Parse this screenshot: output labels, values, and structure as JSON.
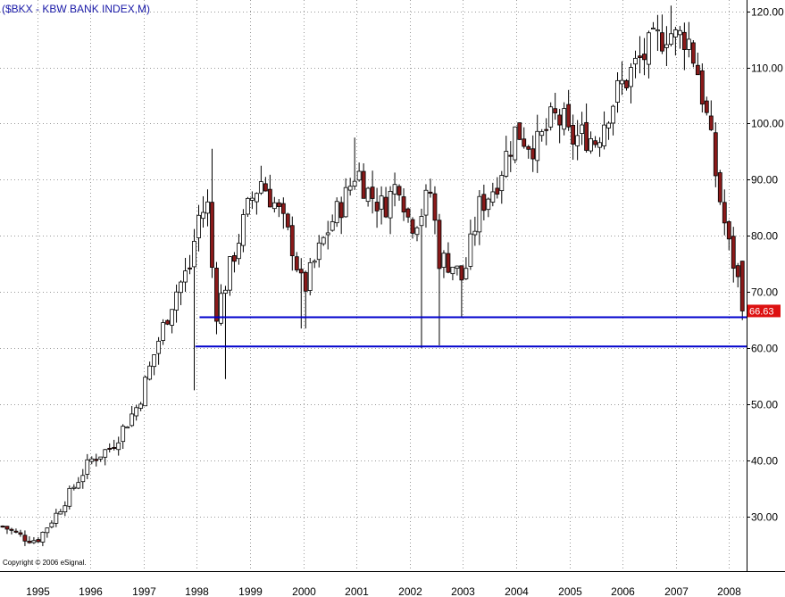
{
  "chart_data": {
    "type": "candlestick",
    "title": "($BKX - KBW BANK INDEX,M)",
    "copyright": "Copyright © 2006 eSignal.",
    "ylim": [
      20.3,
      122.0
    ],
    "yticks": [
      30,
      40,
      50,
      60,
      70,
      80,
      90,
      100,
      110,
      120
    ],
    "ytick_labels": [
      "30.00",
      "40.00",
      "50.00",
      "60.00",
      "70.00",
      "80.00",
      "90.00",
      "100.00",
      "110.00",
      "120.00"
    ],
    "xlim": [
      1994.3,
      2008.33
    ],
    "xticks": [
      1995,
      1996,
      1997,
      1998,
      1999,
      2000,
      2001,
      2002,
      2003,
      2004,
      2005,
      2006,
      2007,
      2008
    ],
    "xtick_labels": [
      "1995",
      "1996",
      "1997",
      "1998",
      "1999",
      "2000",
      "2001",
      "2002",
      "2003",
      "2004",
      "2005",
      "2006",
      "2007",
      "2008"
    ],
    "grid": true,
    "last_value": 66.63,
    "last_value_label": "66.63",
    "horizontal_lines": [
      {
        "value": 65.5,
        "x_start": 1998.05,
        "x_end": 2008.33,
        "color": "#0000cc"
      },
      {
        "value": 60.3,
        "x_start": 1997.97,
        "x_end": 2008.33,
        "color": "#0000cc"
      }
    ],
    "colors": {
      "up": "#ffffff",
      "down": "#8b1a1a",
      "wick": "#000000",
      "grid": "#9a9a9a",
      "last_value_bg": "#dd1111"
    },
    "anchors": [
      [
        1994.35,
        28.3
      ],
      [
        1994.8,
        26.0
      ],
      [
        1995.0,
        25.8
      ],
      [
        1995.4,
        31.0
      ],
      [
        1995.8,
        37.0
      ],
      [
        1996.0,
        40.0
      ],
      [
        1996.4,
        42.5
      ],
      [
        1996.9,
        50.0
      ],
      [
        1997.0,
        53.0
      ],
      [
        1997.3,
        62.0
      ],
      [
        1997.6,
        70.0
      ],
      [
        1997.9,
        75.0
      ],
      [
        1998.0,
        83.0
      ],
      [
        1998.2,
        85.5
      ],
      [
        1998.35,
        66.0
      ],
      [
        1998.55,
        72.0
      ],
      [
        1998.8,
        80.0
      ],
      [
        1999.0,
        86.0
      ],
      [
        1999.2,
        90.0
      ],
      [
        1999.5,
        85.0
      ],
      [
        1999.8,
        78.0
      ],
      [
        2000.0,
        70.0
      ],
      [
        2000.2,
        75.0
      ],
      [
        2000.5,
        82.0
      ],
      [
        2000.8,
        87.0
      ],
      [
        2001.0,
        92.0
      ],
      [
        2001.2,
        88.0
      ],
      [
        2001.5,
        85.0
      ],
      [
        2001.8,
        90.0
      ],
      [
        2002.0,
        82.0
      ],
      [
        2002.2,
        84.0
      ],
      [
        2002.4,
        88.0
      ],
      [
        2002.55,
        76.0
      ],
      [
        2002.8,
        75.0
      ],
      [
        2003.0,
        72.0
      ],
      [
        2003.3,
        85.0
      ],
      [
        2003.6,
        89.0
      ],
      [
        2003.8,
        94.0
      ],
      [
        2004.0,
        99.0
      ],
      [
        2004.2,
        97.0
      ],
      [
        2004.4,
        96.0
      ],
      [
        2004.7,
        101.0
      ],
      [
        2004.9,
        100.0
      ],
      [
        2005.0,
        97.0
      ],
      [
        2005.3,
        98.0
      ],
      [
        2005.5,
        97.0
      ],
      [
        2005.75,
        103.0
      ],
      [
        2006.0,
        107.0
      ],
      [
        2006.3,
        111.0
      ],
      [
        2006.6,
        114.0
      ],
      [
        2006.85,
        117.0
      ],
      [
        2007.0,
        115.0
      ],
      [
        2007.2,
        116.0
      ],
      [
        2007.4,
        110.0
      ],
      [
        2007.6,
        100.0
      ],
      [
        2007.8,
        88.0
      ],
      [
        2008.0,
        78.0
      ],
      [
        2008.15,
        73.0
      ],
      [
        2008.25,
        66.63
      ]
    ],
    "wick_extremes": [
      {
        "x": 1997.95,
        "low": 52.5
      },
      {
        "x": 1998.28,
        "high": 95.5
      },
      {
        "x": 1998.55,
        "low": 54.5
      },
      {
        "x": 2000.0,
        "low": 63.5
      },
      {
        "x": 2001.0,
        "high": 97.5
      },
      {
        "x": 2002.25,
        "low": 60.0
      },
      {
        "x": 2002.55,
        "low": 60.5
      },
      {
        "x": 2003.0,
        "low": 65.5
      },
      {
        "x": 2006.9,
        "high": 121.0
      },
      {
        "x": 2008.25,
        "low": 65.0
      }
    ]
  }
}
